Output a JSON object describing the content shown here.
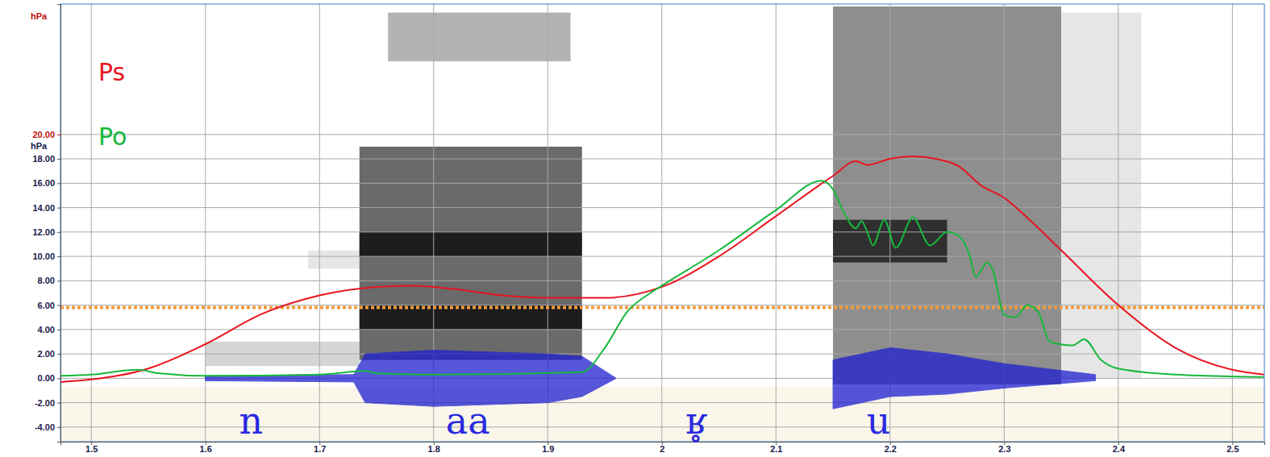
{
  "chart_data": {
    "type": "line",
    "xlim": [
      1.473,
      2.528
    ],
    "xticks": [
      1.5,
      1.6,
      1.7,
      1.8,
      1.9,
      2,
      2.1,
      2.2,
      2.3,
      2.4,
      2.5
    ],
    "ylim": [
      -5.2,
      30.7
    ],
    "yticks": [
      {
        "value": -4,
        "label": "-4.00"
      },
      {
        "value": -2,
        "label": "-2.00"
      },
      {
        "value": 0,
        "label": "0.00"
      },
      {
        "value": 2,
        "label": "2.00"
      },
      {
        "value": 4,
        "label": "4.00"
      },
      {
        "value": 6,
        "label": "6.00"
      },
      {
        "value": 8,
        "label": "8.00"
      },
      {
        "value": 10,
        "label": "10.00"
      },
      {
        "value": 12,
        "label": "12.00"
      },
      {
        "value": 14,
        "label": "14.00"
      },
      {
        "value": 16,
        "label": "16.00"
      },
      {
        "value": 18,
        "label": "18.00"
      }
    ],
    "y2lim": [
      -5.2,
      30.7
    ],
    "y2ticks": [
      {
        "value": 20,
        "label": "20.00"
      }
    ],
    "y_label": "hPa",
    "y2_label": "hPa",
    "grid": true,
    "legend": "top-left",
    "threshold": 5.8,
    "series": [
      {
        "name": "Ps",
        "color": "#e8141e",
        "axis": "y2",
        "x": [
          1.473,
          1.5,
          1.55,
          1.6,
          1.65,
          1.7,
          1.75,
          1.78,
          1.82,
          1.86,
          1.9,
          1.95,
          2.0,
          2.05,
          2.1,
          2.15,
          2.17,
          2.18,
          2.2,
          2.22,
          2.24,
          2.26,
          2.28,
          2.3,
          2.32,
          2.35,
          2.4,
          2.45,
          2.5,
          2.528
        ],
        "values": [
          -0.3,
          -0.1,
          0.8,
          2.8,
          5.3,
          6.8,
          7.5,
          7.6,
          7.3,
          6.8,
          6.6,
          6.6,
          7.5,
          10.0,
          13.3,
          16.6,
          17.8,
          17.5,
          18.0,
          18.2,
          18.0,
          17.4,
          15.8,
          14.8,
          13.2,
          10.5,
          6.0,
          2.5,
          0.7,
          0.3
        ]
      },
      {
        "name": "Po",
        "color": "#16b83c",
        "x": [
          1.473,
          1.5,
          1.54,
          1.56,
          1.6,
          1.7,
          1.74,
          1.75,
          1.8,
          1.93,
          1.95,
          1.97,
          1.99,
          2.0,
          2.05,
          2.1,
          2.14,
          2.15,
          2.16,
          2.17,
          2.175,
          2.18,
          2.185,
          2.195,
          2.205,
          2.22,
          2.235,
          2.25,
          2.26,
          2.27,
          2.275,
          2.285,
          2.29,
          2.3,
          2.31,
          2.32,
          2.33,
          2.34,
          2.36,
          2.37,
          2.385,
          2.4,
          2.45,
          2.528
        ],
        "values": [
          0.2,
          0.3,
          0.7,
          0.4,
          0.2,
          0.3,
          0.6,
          0.4,
          0.3,
          0.5,
          2.5,
          5.5,
          7.0,
          7.6,
          10.5,
          13.8,
          16.2,
          15.5,
          13.5,
          12.3,
          12.9,
          12.0,
          10.9,
          13.0,
          10.7,
          13.2,
          10.9,
          12.0,
          11.7,
          10.0,
          8.3,
          9.5,
          8.9,
          5.2,
          5.0,
          6.0,
          5.4,
          3.0,
          2.7,
          3.2,
          1.5,
          0.8,
          0.3,
          0.1
        ]
      }
    ],
    "waveform": {
      "color": "#1f1fd0",
      "x": [
        1.6,
        1.73,
        1.74,
        1.8,
        1.9,
        1.93,
        1.96,
        2.0,
        2.15,
        2.2,
        2.25,
        2.3,
        2.38
      ],
      "upper": [
        0.2,
        0.3,
        2.0,
        2.3,
        2.0,
        1.8,
        0.0,
        null,
        1.5,
        2.5,
        2.0,
        1.2,
        0.3
      ],
      "lower": [
        -0.2,
        -0.3,
        -2.0,
        -2.3,
        -2.0,
        -1.5,
        0.0,
        null,
        -2.5,
        -1.5,
        -1.3,
        -0.8,
        -0.2
      ]
    },
    "spectrogram": [
      {
        "x0": 1.6,
        "x1": 1.735,
        "y0": 1.0,
        "y1": 3.0,
        "level": 0.3
      },
      {
        "x0": 1.69,
        "x1": 1.735,
        "y0": 9.0,
        "y1": 10.5,
        "level": 0.2
      },
      {
        "x0": 1.735,
        "x1": 1.93,
        "y0": 1.5,
        "y1": 19.0,
        "level": 0.75
      },
      {
        "x0": 1.76,
        "x1": 1.92,
        "y0": 26.0,
        "y1": 30.0,
        "level": 0.45
      },
      {
        "x0": 1.735,
        "x1": 1.93,
        "y0": 10.0,
        "y1": 12.0,
        "level": 0.95
      },
      {
        "x0": 1.735,
        "x1": 1.93,
        "y0": 4.0,
        "y1": 6.0,
        "level": 0.95
      },
      {
        "x0": 2.15,
        "x1": 2.35,
        "y0": -0.5,
        "y1": 30.5,
        "level": 0.6
      },
      {
        "x0": 2.15,
        "x1": 2.25,
        "y0": 9.5,
        "y1": 13.0,
        "level": 0.9
      },
      {
        "x0": 2.35,
        "x1": 2.42,
        "y0": 0.0,
        "y1": 30.0,
        "level": 0.2
      }
    ],
    "segments": [
      {
        "label": "n",
        "x": 1.64
      },
      {
        "label": "aa",
        "x": 1.83
      },
      {
        "label": "ʁ̥",
        "x": 2.03
      },
      {
        "label": "u",
        "x": 2.19
      }
    ]
  }
}
